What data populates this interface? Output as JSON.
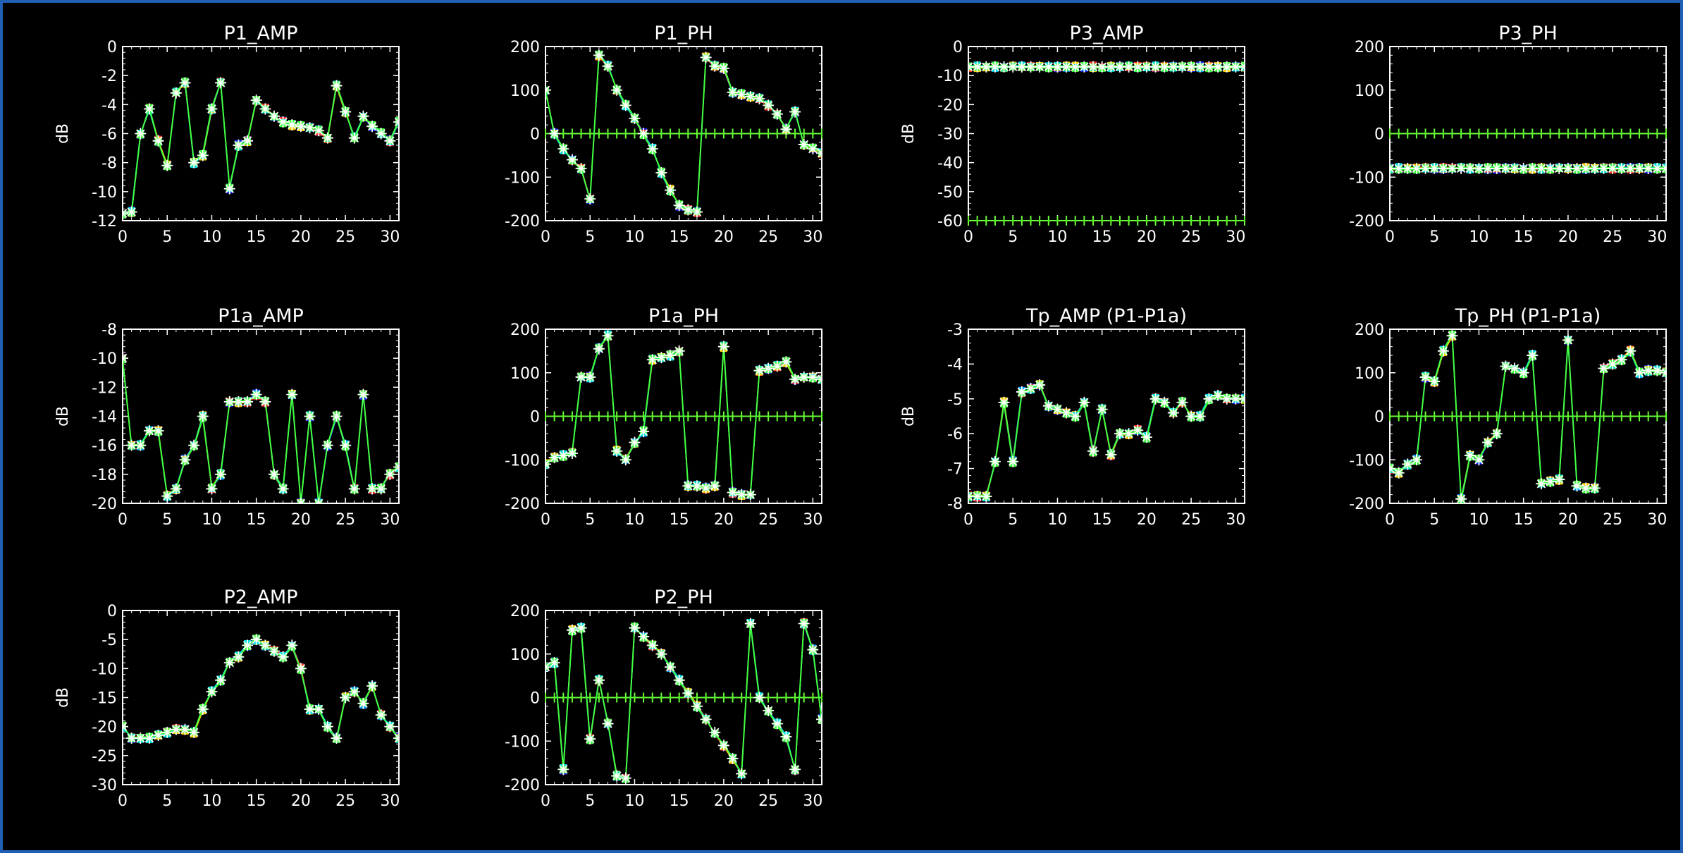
{
  "style": {
    "background": "#000000",
    "window_border": "#1f5fb4",
    "axis_color": "#ffffff",
    "series_colors": [
      "#2020ff",
      "#00a0ff",
      "#ff3030",
      "#ffd000",
      "#00e0e0",
      "#40ff40"
    ],
    "zero_line_color": "#66ff33",
    "marker_color": "#ffffff"
  },
  "chart_data": [
    {
      "type": "line",
      "title": "P1_AMP",
      "ylabel": "dB",
      "xlim": [
        0,
        31
      ],
      "ylim": [
        -12,
        0
      ],
      "xticks": [
        "0",
        "5",
        "10",
        "15",
        "20",
        "25",
        "30"
      ],
      "yticks": [
        "0",
        "-2",
        "-4",
        "-6",
        "-8",
        "-10",
        "-12"
      ],
      "x": [
        0,
        1,
        2,
        3,
        4,
        5,
        6,
        7,
        8,
        9,
        10,
        11,
        12,
        13,
        14,
        15,
        16,
        17,
        18,
        19,
        20,
        21,
        22,
        23,
        24,
        25,
        26,
        27,
        28,
        29,
        30,
        31
      ],
      "values": [
        -11.5,
        -11.4,
        -6,
        -4.3,
        -6.5,
        -8.2,
        -3.2,
        -2.5,
        -8,
        -7.5,
        -4.3,
        -2.5,
        -9.8,
        -6.8,
        -6.5,
        -3.7,
        -4.3,
        -4.8,
        -5.2,
        -5.4,
        -5.5,
        -5.6,
        -5.8,
        -6.3,
        -2.7,
        -4.5,
        -6.3,
        -4.8,
        -5.5,
        -6,
        -6.5,
        -5.2
      ],
      "zero_line": null
    },
    {
      "type": "line",
      "title": "P1_PH",
      "ylabel": "",
      "xlim": [
        0,
        31
      ],
      "ylim": [
        -200,
        200
      ],
      "xticks": [
        "0",
        "5",
        "10",
        "15",
        "20",
        "25",
        "30"
      ],
      "yticks": [
        "200",
        "100",
        "0",
        "-100",
        "-200"
      ],
      "x": [
        0,
        1,
        2,
        3,
        4,
        5,
        6,
        7,
        8,
        9,
        10,
        11,
        12,
        13,
        14,
        15,
        16,
        17,
        18,
        19,
        20,
        21,
        22,
        23,
        24,
        25,
        26,
        27,
        28,
        29,
        30,
        31
      ],
      "values": [
        100,
        0,
        -35,
        -60,
        -80,
        -150,
        180,
        155,
        100,
        65,
        35,
        0,
        -35,
        -90,
        -130,
        -165,
        -175,
        -180,
        175,
        155,
        150,
        95,
        90,
        85,
        80,
        65,
        45,
        10,
        50,
        -25,
        -35,
        -45
      ],
      "zero_line": 0
    },
    {
      "type": "line",
      "title": "P3_AMP",
      "ylabel": "dB",
      "xlim": [
        0,
        31
      ],
      "ylim": [
        -60,
        0
      ],
      "xticks": [
        "0",
        "5",
        "10",
        "15",
        "20",
        "25",
        "30"
      ],
      "yticks": [
        "0",
        "-10",
        "-20",
        "-30",
        "-40",
        "-50",
        "-60"
      ],
      "x": [
        0,
        1,
        2,
        3,
        4,
        5,
        6,
        7,
        8,
        9,
        10,
        11,
        12,
        13,
        14,
        15,
        16,
        17,
        18,
        19,
        20,
        21,
        22,
        23,
        24,
        25,
        26,
        27,
        28,
        29,
        30,
        31
      ],
      "values": [
        -7,
        -7,
        -7,
        -7,
        -7,
        -7,
        -7,
        -7,
        -7,
        -7,
        -7,
        -7,
        -7,
        -7,
        -7,
        -7,
        -7,
        -7,
        -7,
        -7,
        -7,
        -7,
        -7,
        -7,
        -7,
        -7,
        -7,
        -7,
        -7,
        -7,
        -7,
        -7
      ],
      "zero_line": -60
    },
    {
      "type": "line",
      "title": "P3_PH",
      "ylabel": "",
      "xlim": [
        0,
        31
      ],
      "ylim": [
        -200,
        200
      ],
      "xticks": [
        "0",
        "5",
        "10",
        "15",
        "20",
        "25",
        "30"
      ],
      "yticks": [
        "200",
        "100",
        "0",
        "-100",
        "-200"
      ],
      "x": [
        0,
        1,
        2,
        3,
        4,
        5,
        6,
        7,
        8,
        9,
        10,
        11,
        12,
        13,
        14,
        15,
        16,
        17,
        18,
        19,
        20,
        21,
        22,
        23,
        24,
        25,
        26,
        27,
        28,
        29,
        30,
        31
      ],
      "values": [
        -80,
        -80,
        -80,
        -80,
        -80,
        -80,
        -80,
        -80,
        -80,
        -80,
        -80,
        -80,
        -80,
        -80,
        -80,
        -80,
        -80,
        -80,
        -80,
        -80,
        -80,
        -80,
        -80,
        -80,
        -80,
        -80,
        -80,
        -80,
        -80,
        -80,
        -80,
        -80
      ],
      "zero_line": 0
    },
    {
      "type": "line",
      "title": "P1a_AMP",
      "ylabel": "dB",
      "xlim": [
        0,
        31
      ],
      "ylim": [
        -20,
        -8
      ],
      "xticks": [
        "0",
        "5",
        "10",
        "15",
        "20",
        "25",
        "30"
      ],
      "yticks": [
        "-8",
        "-10",
        "-12",
        "-14",
        "-16",
        "-18",
        "-20"
      ],
      "x": [
        0,
        1,
        2,
        3,
        4,
        5,
        6,
        7,
        8,
        9,
        10,
        11,
        12,
        13,
        14,
        15,
        16,
        17,
        18,
        19,
        20,
        21,
        22,
        23,
        24,
        25,
        26,
        27,
        28,
        29,
        30,
        31
      ],
      "values": [
        -10,
        -16,
        -16,
        -15,
        -15,
        -19.5,
        -19,
        -17,
        -16,
        -14,
        -19,
        -18,
        -13,
        -13,
        -13,
        -12.5,
        -13,
        -18,
        -19,
        -12.5,
        -20,
        -14,
        -20,
        -16,
        -14,
        -16,
        -19,
        -12.5,
        -19,
        -19,
        -18,
        -17.5
      ],
      "zero_line": null
    },
    {
      "type": "line",
      "title": "P1a_PH",
      "ylabel": "",
      "xlim": [
        0,
        31
      ],
      "ylim": [
        -200,
        200
      ],
      "xticks": [
        "0",
        "5",
        "10",
        "15",
        "20",
        "25",
        "30"
      ],
      "yticks": [
        "200",
        "100",
        "0",
        "-100",
        "-200"
      ],
      "x": [
        0,
        1,
        2,
        3,
        4,
        5,
        6,
        7,
        8,
        9,
        10,
        11,
        12,
        13,
        14,
        15,
        16,
        17,
        18,
        19,
        20,
        21,
        22,
        23,
        24,
        25,
        26,
        27,
        28,
        29,
        30,
        31
      ],
      "values": [
        -110,
        -95,
        -90,
        -85,
        90,
        90,
        155,
        185,
        -80,
        -100,
        -60,
        -35,
        130,
        135,
        140,
        150,
        -160,
        -160,
        -165,
        -160,
        160,
        -175,
        -180,
        -180,
        105,
        110,
        115,
        125,
        85,
        90,
        90,
        85
      ],
      "zero_line": 0
    },
    {
      "type": "line",
      "title": "Tp_AMP (P1-P1a)",
      "ylabel": "dB",
      "xlim": [
        0,
        31
      ],
      "ylim": [
        -8,
        -3
      ],
      "xticks": [
        "0",
        "5",
        "10",
        "15",
        "20",
        "25",
        "30"
      ],
      "yticks": [
        "-3",
        "-4",
        "-5",
        "-6",
        "-7",
        "-8"
      ],
      "x": [
        0,
        1,
        2,
        3,
        4,
        5,
        6,
        7,
        8,
        9,
        10,
        11,
        12,
        13,
        14,
        15,
        16,
        17,
        18,
        19,
        20,
        21,
        22,
        23,
        24,
        25,
        26,
        27,
        28,
        29,
        30,
        31
      ],
      "values": [
        -7.8,
        -7.8,
        -7.8,
        -6.8,
        -5.1,
        -6.8,
        -4.8,
        -4.7,
        -4.6,
        -5.2,
        -5.3,
        -5.4,
        -5.5,
        -5.1,
        -6.5,
        -5.3,
        -6.6,
        -6,
        -6,
        -5.9,
        -6.1,
        -5,
        -5.1,
        -5.4,
        -5.1,
        -5.5,
        -5.5,
        -5,
        -4.9,
        -5,
        -5,
        -5
      ],
      "zero_line": null
    },
    {
      "type": "line",
      "title": "Tp_PH (P1-P1a)",
      "ylabel": "",
      "xlim": [
        0,
        31
      ],
      "ylim": [
        -200,
        200
      ],
      "xticks": [
        "0",
        "5",
        "10",
        "15",
        "20",
        "25",
        "30"
      ],
      "yticks": [
        "200",
        "100",
        "0",
        "-100",
        "-200"
      ],
      "x": [
        0,
        1,
        2,
        3,
        4,
        5,
        6,
        7,
        8,
        9,
        10,
        11,
        12,
        13,
        14,
        15,
        16,
        17,
        18,
        19,
        20,
        21,
        22,
        23,
        24,
        25,
        26,
        27,
        28,
        29,
        30,
        31
      ],
      "values": [
        -120,
        -130,
        -110,
        -100,
        90,
        80,
        150,
        185,
        -190,
        -90,
        -100,
        -60,
        -40,
        115,
        110,
        100,
        140,
        -155,
        -150,
        -145,
        175,
        -160,
        -165,
        -165,
        110,
        120,
        130,
        150,
        100,
        105,
        105,
        100
      ],
      "zero_line": 0
    },
    {
      "type": "line",
      "title": "P2_AMP",
      "ylabel": "dB",
      "xlim": [
        0,
        31
      ],
      "ylim": [
        -30,
        0
      ],
      "xticks": [
        "0",
        "5",
        "10",
        "15",
        "20",
        "25",
        "30"
      ],
      "yticks": [
        "0",
        "-5",
        "-10",
        "-15",
        "-20",
        "-25",
        "-30"
      ],
      "x": [
        0,
        1,
        2,
        3,
        4,
        5,
        6,
        7,
        8,
        9,
        10,
        11,
        12,
        13,
        14,
        15,
        16,
        17,
        18,
        19,
        20,
        21,
        22,
        23,
        24,
        25,
        26,
        27,
        28,
        29,
        30,
        31
      ],
      "values": [
        -20,
        -22,
        -22,
        -22,
        -21.5,
        -21,
        -20.5,
        -20.5,
        -21,
        -17,
        -14,
        -12,
        -9,
        -8,
        -6,
        -5,
        -6,
        -7,
        -8,
        -6,
        -10,
        -17,
        -17,
        -20,
        -22,
        -15,
        -14,
        -16,
        -13,
        -18,
        -20,
        -22
      ],
      "zero_line": null
    },
    {
      "type": "line",
      "title": "P2_PH",
      "ylabel": "",
      "xlim": [
        0,
        31
      ],
      "ylim": [
        -200,
        200
      ],
      "xticks": [
        "0",
        "5",
        "10",
        "15",
        "20",
        "25",
        "30"
      ],
      "yticks": [
        "200",
        "100",
        "0",
        "-100",
        "-200"
      ],
      "x": [
        0,
        1,
        2,
        3,
        4,
        5,
        6,
        7,
        8,
        9,
        10,
        11,
        12,
        13,
        14,
        15,
        16,
        17,
        18,
        19,
        20,
        21,
        22,
        23,
        24,
        25,
        26,
        27,
        28,
        29,
        30,
        31
      ],
      "values": [
        70,
        80,
        -165,
        155,
        160,
        -95,
        40,
        -60,
        -180,
        -185,
        160,
        140,
        120,
        100,
        70,
        40,
        10,
        -20,
        -50,
        -80,
        -110,
        -140,
        -175,
        170,
        0,
        -30,
        -60,
        -90,
        -165,
        170,
        110,
        -50
      ],
      "zero_line": 0
    }
  ]
}
